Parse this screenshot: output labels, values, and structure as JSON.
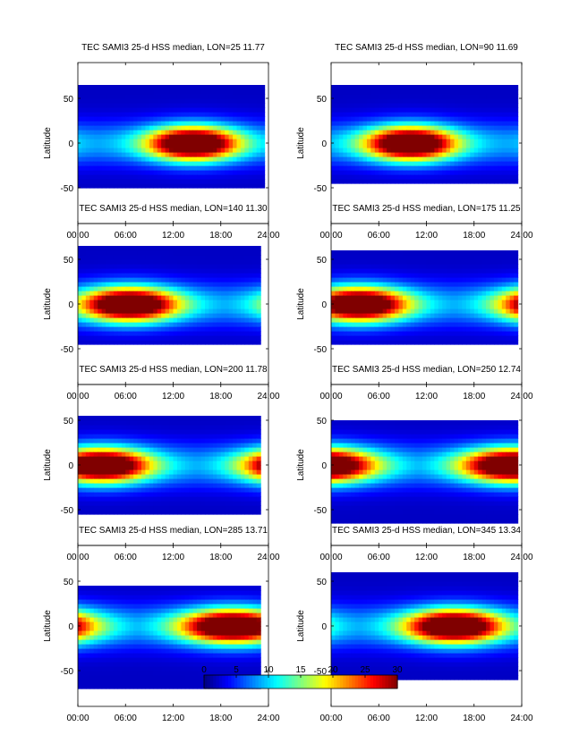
{
  "chart_data": {
    "type": "heatmap",
    "colormap": "jet",
    "colorbar": {
      "range": [
        0,
        30
      ],
      "tick_labels": [
        "0",
        "5",
        "10",
        "15",
        "20",
        "25",
        "30"
      ],
      "ticks": [
        0,
        5,
        10,
        15,
        20,
        25,
        30
      ]
    },
    "shared_axes": {
      "ylabel": "Latitude",
      "xlim": [
        0,
        24
      ],
      "ylim": [
        -90,
        90
      ],
      "x_ticks": [
        0,
        6,
        12,
        18,
        24
      ],
      "x_tick_labels": [
        "00:00",
        "06:00",
        "12:00",
        "18:00",
        "24:00"
      ],
      "y_ticks": [
        -50,
        0,
        50
      ],
      "y_tick_labels": [
        "-50",
        "0",
        "50"
      ]
    },
    "panels": [
      {
        "title": "TEC  SAMI3 25-d HSS median, LON=25 11.77",
        "lon": 25,
        "value": 11.77,
        "lat_range": [
          -50,
          65
        ],
        "data_end_hour": 23.5,
        "peak_hour": 14.5,
        "peak_halfwidth_hours": 6.5,
        "peak_level": 42
      },
      {
        "title": "TEC  SAMI3 25-d HSS median, LON=90 11.69",
        "lon": 90,
        "value": 11.69,
        "lat_range": [
          -45,
          65
        ],
        "data_end_hour": 23.5,
        "peak_hour": 10.0,
        "peak_halfwidth_hours": 6.5,
        "peak_level": 42
      },
      {
        "title": "TEC  SAMI3 25-d HSS median, LON=140 11.30",
        "lon": 140,
        "value": 11.3,
        "lat_range": [
          -45,
          65
        ],
        "data_end_hour": 23.0,
        "peak_hour": 6.5,
        "peak_halfwidth_hours": 7.0,
        "peak_level": 42
      },
      {
        "title": "TEC  SAMI3 25-d HSS median, LON=175 11.25",
        "lon": 175,
        "value": 11.25,
        "lat_range": [
          -45,
          60
        ],
        "data_end_hour": 23.5,
        "peak_hour": 3.5,
        "peak_halfwidth_hours": 7.0,
        "peak_level": 42
      },
      {
        "title": "TEC  SAMI3 25-d HSS median, LON=200 11.78",
        "lon": 200,
        "value": 11.78,
        "lat_range": [
          -55,
          55
        ],
        "data_end_hour": 23.0,
        "peak_hour": 3.0,
        "peak_halfwidth_hours": 7.0,
        "peak_level": 42
      },
      {
        "title": "TEC  SAMI3 25-d HSS median, LON=250 12.74",
        "lon": 250,
        "value": 12.74,
        "lat_range": [
          -65,
          50
        ],
        "data_end_hour": 23.5,
        "peak_hour": 23.0,
        "peak_halfwidth_hours": 7.5,
        "peak_level": 42
      },
      {
        "title": "TEC  SAMI3 25-d HSS median, LON=285 13.71",
        "lon": 285,
        "value": 13.71,
        "lat_range": [
          -70,
          45
        ],
        "data_end_hour": 23.0,
        "peak_hour": 19.5,
        "peak_halfwidth_hours": 7.5,
        "peak_level": 42
      },
      {
        "title": "TEC  SAMI3 25-d HSS median, LON=345 13.34",
        "lon": 345,
        "value": 13.34,
        "lat_range": [
          -60,
          60
        ],
        "data_end_hour": 23.5,
        "peak_hour": 15.5,
        "peak_halfwidth_hours": 7.0,
        "peak_level": 42
      }
    ]
  }
}
